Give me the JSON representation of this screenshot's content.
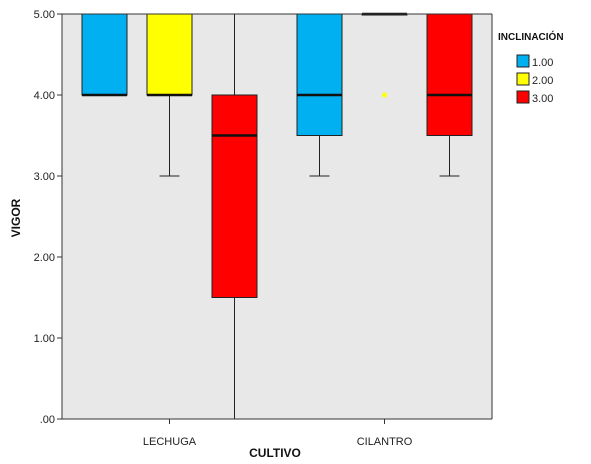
{
  "chart_data": {
    "type": "boxplot",
    "xlabel": "CULTIVO",
    "ylabel": "VIGOR",
    "ylim": [
      0,
      5
    ],
    "yticks": [
      0,
      1,
      2,
      3,
      4,
      5
    ],
    "ytick_labels": [
      ".00",
      "1.00",
      "2.00",
      "3.00",
      "4.00",
      "5.00"
    ],
    "grid": false,
    "legend_position": "right",
    "legend_title": "INCLINACIÓN",
    "categories": [
      "LECHUGA",
      "CILANTRO"
    ],
    "series": [
      {
        "name": "1.00",
        "color": "#00b0f0"
      },
      {
        "name": "2.00",
        "color": "#ffff00"
      },
      {
        "name": "3.00",
        "color": "#ff0000"
      }
    ],
    "boxes": [
      {
        "category": "LECHUGA",
        "series": "1.00",
        "q1": 4.0,
        "median": 4.0,
        "q3": 5.0,
        "whisker_low": 4.0,
        "whisker_high": 5.0
      },
      {
        "category": "LECHUGA",
        "series": "2.00",
        "q1": 4.0,
        "median": 4.0,
        "q3": 5.0,
        "whisker_low": 3.0,
        "whisker_high": 5.0
      },
      {
        "category": "LECHUGA",
        "series": "3.00",
        "q1": 1.5,
        "median": 3.5,
        "q3": 4.0,
        "whisker_low": 0.0,
        "whisker_high": 5.0
      },
      {
        "category": "CILANTRO",
        "series": "1.00",
        "q1": 3.5,
        "median": 4.0,
        "q3": 5.0,
        "whisker_low": 3.0,
        "whisker_high": 5.0
      },
      {
        "category": "CILANTRO",
        "series": "2.00",
        "q1": 5.0,
        "median": 5.0,
        "q3": 5.0,
        "whisker_low": 5.0,
        "whisker_high": 5.0,
        "outliers": [
          4.0
        ]
      },
      {
        "category": "CILANTRO",
        "series": "3.00",
        "q1": 3.5,
        "median": 4.0,
        "q3": 5.0,
        "whisker_low": 3.0,
        "whisker_high": 5.0
      }
    ]
  }
}
